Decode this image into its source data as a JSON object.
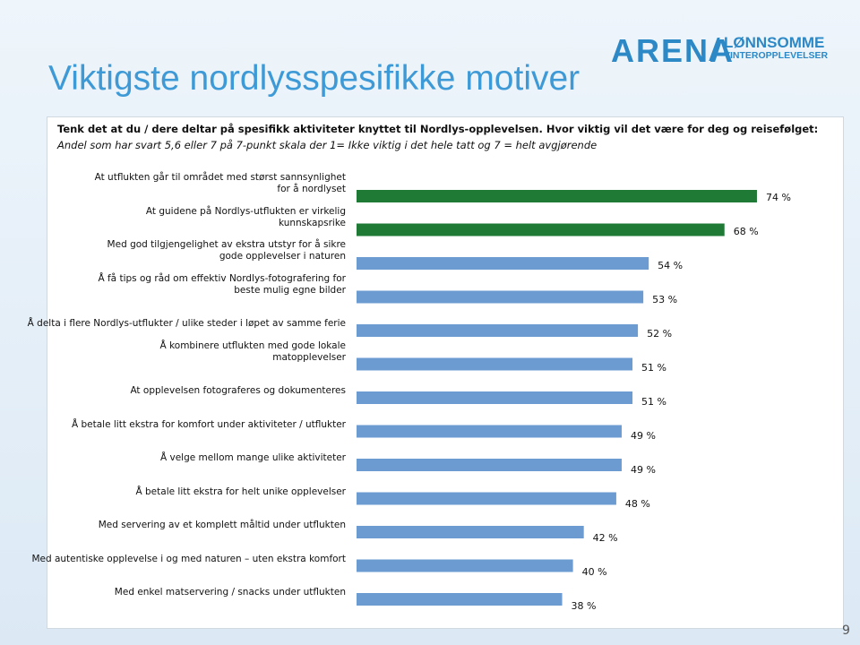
{
  "header": {
    "title": "Viktigste nordlysspesifikke motiver",
    "logo": {
      "brand": "ARENA",
      "line1": "LØNNSOMME",
      "line2": "VINTEROPPLEVELSER"
    }
  },
  "page_number": "9",
  "chart_data": {
    "type": "bar",
    "orientation": "horizontal",
    "question": "Tenk det at du / dere deltar på spesifikk aktiviteter knyttet til Nordlys-opplevelsen. Hvor viktig vil det være for deg og reisefølget:",
    "note": "Andel som har svart 5,6 eller 7 på 7-punkt skala der 1= Ikke viktig i det hele tatt og 7 = helt avgjørende",
    "categories": [
      "At utflukten går til området med størst sannsynlighet for å nordlyset",
      "At guidene på Nordlys-utflukten er virkelig kunnskapsrike",
      "Med god tilgjengelighet av ekstra utstyr for å sikre gode opplevelser i naturen",
      "Å få tips og råd om effektiv Nordlys-fotografering for beste mulig egne bilder",
      "Å delta i flere Nordlys-utflukter / ulike steder i løpet av samme ferie",
      "Å kombinere utflukten med gode lokale matopplevelser",
      "At opplevelsen fotograferes og dokumenteres",
      "Å betale litt ekstra for komfort under aktiviteter / utflukter",
      "Å velge mellom mange ulike aktiviteter",
      "Å betale litt ekstra for helt unike opplevelser",
      "Med servering av et komplett måltid under utflukten",
      "Med autentiske opplevelse i og med naturen – uten ekstra komfort",
      "Med enkel matservering / snacks under utflukten"
    ],
    "values": [
      74,
      68,
      54,
      53,
      52,
      51,
      51,
      49,
      49,
      48,
      42,
      40,
      38
    ],
    "value_labels": [
      "74 %",
      "68 %",
      "54 %",
      "53 %",
      "52 %",
      "51 %",
      "51 %",
      "49 %",
      "49 %",
      "48 %",
      "42 %",
      "40 %",
      "38 %"
    ],
    "colors": [
      "#1f7a35",
      "#1f7a35",
      "#6b9bd0",
      "#6b9bd0",
      "#6b9bd0",
      "#6b9bd0",
      "#6b9bd0",
      "#6b9bd0",
      "#6b9bd0",
      "#6b9bd0",
      "#6b9bd0",
      "#6b9bd0",
      "#6b9bd0"
    ]
  }
}
